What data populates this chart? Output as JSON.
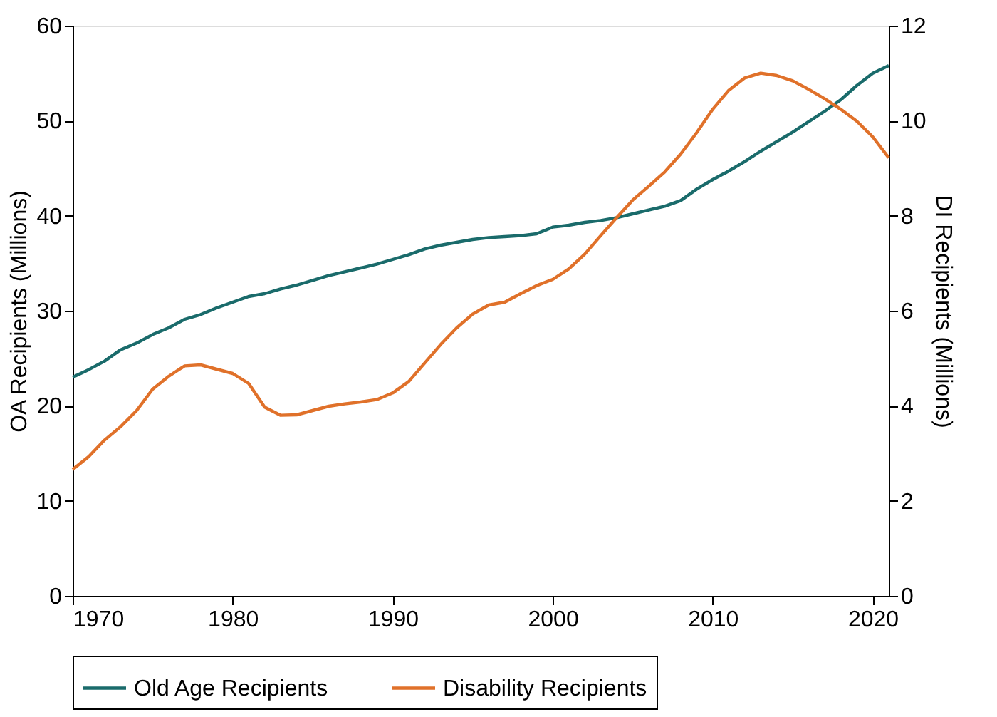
{
  "chart_data": {
    "type": "line",
    "xlabel": null,
    "ylabel": "OA Recipients (Millions)",
    "y2label": "DI Recipients (Millions)",
    "x": [
      1970,
      1971,
      1972,
      1973,
      1974,
      1975,
      1976,
      1977,
      1978,
      1979,
      1980,
      1981,
      1982,
      1983,
      1984,
      1985,
      1986,
      1987,
      1988,
      1989,
      1990,
      1991,
      1992,
      1993,
      1994,
      1995,
      1996,
      1997,
      1998,
      1999,
      2000,
      2001,
      2002,
      2003,
      2004,
      2005,
      2006,
      2007,
      2008,
      2009,
      2010,
      2011,
      2012,
      2013,
      2014,
      2015,
      2016,
      2017,
      2018,
      2019,
      2020,
      2021
    ],
    "series": [
      {
        "name": "Old Age Recipients",
        "color": "#1a6b6b",
        "values": [
          23.0,
          23.8,
          24.7,
          25.9,
          26.6,
          27.5,
          28.2,
          29.1,
          29.6,
          30.3,
          30.9,
          31.5,
          31.8,
          32.3,
          32.7,
          33.2,
          33.7,
          34.1,
          34.5,
          34.9,
          35.4,
          35.9,
          36.5,
          36.9,
          37.2,
          37.5,
          37.7,
          37.8,
          37.9,
          38.1,
          38.8,
          39.0,
          39.3,
          39.5,
          39.8,
          40.2,
          40.6,
          41.0,
          41.6,
          42.8,
          43.8,
          44.7,
          45.7,
          46.8,
          47.8,
          48.8,
          49.9,
          51.0,
          52.2,
          53.7,
          55.0,
          55.8
        ]
      },
      {
        "name": "Disability Recipients",
        "color": "#e0712a",
        "axis": "y2",
        "values": [
          2.66,
          2.93,
          3.28,
          3.56,
          3.9,
          4.35,
          4.62,
          4.84,
          4.86,
          4.77,
          4.68,
          4.47,
          3.97,
          3.8,
          3.81,
          3.9,
          3.99,
          4.04,
          4.08,
          4.13,
          4.27,
          4.51,
          4.9,
          5.29,
          5.64,
          5.93,
          6.12,
          6.18,
          6.36,
          6.53,
          6.66,
          6.88,
          7.19,
          7.58,
          7.96,
          8.33,
          8.62,
          8.92,
          9.3,
          9.75,
          10.24,
          10.64,
          10.9,
          11.0,
          10.95,
          10.84,
          10.66,
          10.46,
          10.24,
          9.99,
          9.66,
          9.22
        ]
      }
    ],
    "xlim": [
      1970,
      2021
    ],
    "xticks": [
      1970,
      1980,
      1990,
      2000,
      2010,
      2020
    ],
    "ylim": [
      0,
      60
    ],
    "yticks": [
      0,
      10,
      20,
      30,
      40,
      50,
      60
    ],
    "y2lim": [
      0,
      12
    ],
    "y2ticks": [
      0,
      2,
      4,
      6,
      8,
      10,
      12
    ],
    "grid": false,
    "legend": "bottom",
    "marker": "none",
    "line_style": "solid"
  }
}
